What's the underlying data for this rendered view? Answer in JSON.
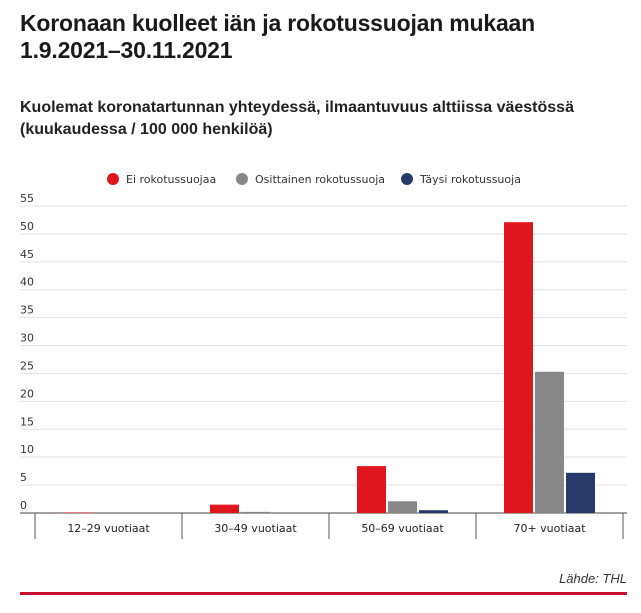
{
  "title": "Koronaan kuolleet iän ja rokotussuojan mukaan 1.9.2021–30.11.2021",
  "subtitle": "Kuolemat koronatartunnan yhteydessä, ilmaantuvuus alttiissa väestössä (kuukaudessa / 100 000 henkilöä)",
  "source": "Lähde: THL",
  "chart_data": {
    "type": "bar",
    "title": "Koronaan kuolleet iän ja rokotussuojan mukaan 1.9.2021–30.11.2021",
    "subtitle": "Kuolemat koronatartunnan yhteydessä, ilmaantuvuus alttiissa väestössä (kuukaudessa / 100 000 henkilöä)",
    "xlabel": "",
    "ylabel": "",
    "categories": [
      "12–29 vuotiaat",
      "30–49 vuotiaat",
      "50–69 vuotiaat",
      "70+ vuotiaat"
    ],
    "series": [
      {
        "name": "Ei rokotussuojaa",
        "color": "#e0161e",
        "values": [
          0.1,
          1.5,
          8.4,
          52.1
        ]
      },
      {
        "name": "Osittainen rokotussuoja",
        "color": "#888888",
        "values": [
          0.0,
          0.2,
          2.1,
          25.3
        ]
      },
      {
        "name": "Täysi rokotussuoja",
        "color": "#273a6a",
        "values": [
          0.0,
          0.0,
          0.5,
          7.2
        ]
      }
    ],
    "ylim": [
      0,
      55
    ],
    "yticks": [
      0,
      5,
      10,
      15,
      20,
      25,
      30,
      35,
      40,
      45,
      50,
      55
    ],
    "grid": true,
    "legend_position": "top-center"
  }
}
